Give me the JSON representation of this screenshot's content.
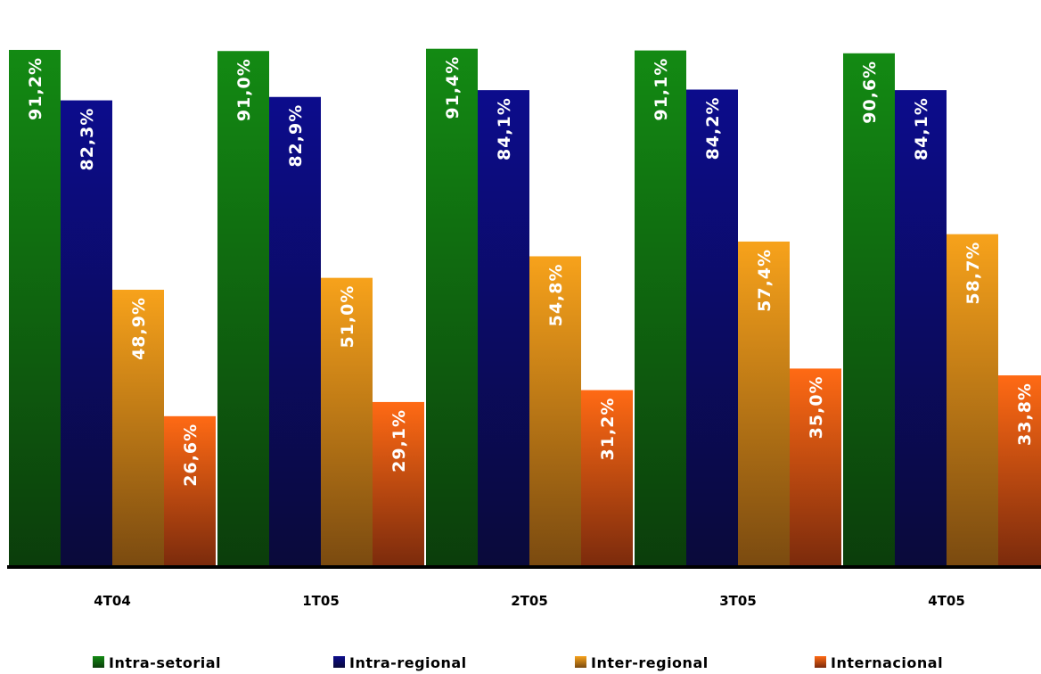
{
  "chart_data": {
    "type": "bar",
    "categories": [
      "4T04",
      "1T05",
      "2T05",
      "3T05",
      "4T05"
    ],
    "series": [
      {
        "name": "Intra-setorial",
        "values": [
          91.2,
          91.0,
          91.4,
          91.1,
          90.6
        ],
        "labels": [
          "91,2%",
          "91,0%",
          "91,4%",
          "91,1%",
          "90,6%"
        ],
        "color_top": "#138a13",
        "color_bottom": "#0b3d0b"
      },
      {
        "name": "Intra-regional",
        "values": [
          82.3,
          82.9,
          84.1,
          84.2,
          84.1
        ],
        "labels": [
          "82,3%",
          "82,9%",
          "84,1%",
          "84,2%",
          "84,1%"
        ],
        "color_top": "#0c0c8c",
        "color_bottom": "#0a0a3a"
      },
      {
        "name": "Inter-regional",
        "values": [
          48.9,
          51.0,
          54.8,
          57.4,
          58.7
        ],
        "labels": [
          "48,9%",
          "51,0%",
          "54,8%",
          "57,4%",
          "58,7%"
        ],
        "color_top": "#f7a21b",
        "color_bottom": "#7a4a10"
      },
      {
        "name": "Internacional",
        "values": [
          26.6,
          29.1,
          31.2,
          35.0,
          33.8
        ],
        "labels": [
          "26,6%",
          "29,1%",
          "31,2%",
          "35,0%",
          "33,8%"
        ],
        "color_top": "#ff6a14",
        "color_bottom": "#7a2a0c"
      }
    ],
    "ylim": [
      0,
      100
    ],
    "grid": false,
    "legend": "bottom"
  }
}
